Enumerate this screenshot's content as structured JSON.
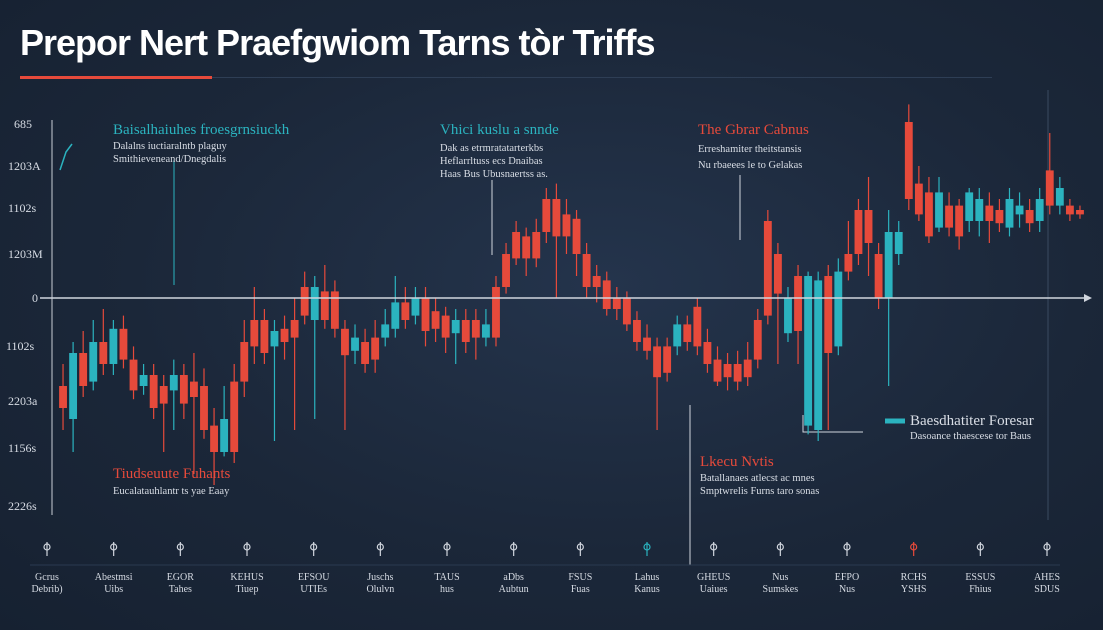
{
  "title": "Prepor Nert Praefgwiom Tarns tòr Triffs",
  "colors": {
    "background": "#1c2a3e",
    "up": "#2bb3bf",
    "down": "#e64a3b",
    "baseline": "#d0d5dd",
    "text": "#ffffff"
  },
  "chart_data": {
    "type": "candlestick",
    "title": "Prepor Nert Praefgwiom Tarns tòr Triffs",
    "y_tick_labels": [
      "685",
      "1203A",
      "1102s",
      "1203M",
      "0",
      "1102s",
      "2203a",
      "1156s",
      "2226s"
    ],
    "baseline_value": 0,
    "ylim": [
      -100,
      95
    ],
    "candles": [
      {
        "o": -40,
        "c": -50,
        "h": -30,
        "l": -60,
        "color": "down"
      },
      {
        "o": -55,
        "c": -25,
        "h": -20,
        "l": -70,
        "color": "up"
      },
      {
        "o": -25,
        "c": -40,
        "h": -15,
        "l": -45,
        "color": "down"
      },
      {
        "o": -38,
        "c": -20,
        "h": -10,
        "l": -42,
        "color": "up"
      },
      {
        "o": -20,
        "c": -30,
        "h": -5,
        "l": -35,
        "color": "down"
      },
      {
        "o": -30,
        "c": -14,
        "h": -10,
        "l": -35,
        "color": "up"
      },
      {
        "o": -14,
        "c": -28,
        "h": -8,
        "l": -32,
        "color": "down"
      },
      {
        "o": -28,
        "c": -42,
        "h": -22,
        "l": -46,
        "color": "down"
      },
      {
        "o": -40,
        "c": -35,
        "h": -30,
        "l": -44,
        "color": "up"
      },
      {
        "o": -35,
        "c": -50,
        "h": -30,
        "l": -55,
        "color": "down"
      },
      {
        "o": -48,
        "c": -40,
        "h": -35,
        "l": -70,
        "color": "down"
      },
      {
        "o": -42,
        "c": -35,
        "h": -28,
        "l": -60,
        "color": "up"
      },
      {
        "o": -35,
        "c": -48,
        "h": -30,
        "l": -55,
        "color": "down"
      },
      {
        "o": -45,
        "c": -38,
        "h": -25,
        "l": -80,
        "color": "down"
      },
      {
        "o": -40,
        "c": -60,
        "h": -32,
        "l": -64,
        "color": "down"
      },
      {
        "o": -58,
        "c": -70,
        "h": -50,
        "l": -85,
        "color": "down"
      },
      {
        "o": -55,
        "c": -70,
        "h": -40,
        "l": -72,
        "color": "up"
      },
      {
        "o": -70,
        "c": -38,
        "h": -30,
        "l": -75,
        "color": "down"
      },
      {
        "o": -38,
        "c": -20,
        "h": -10,
        "l": -45,
        "color": "down"
      },
      {
        "o": -22,
        "c": -10,
        "h": 5,
        "l": -30,
        "color": "down"
      },
      {
        "o": -10,
        "c": -25,
        "h": -5,
        "l": -30,
        "color": "down"
      },
      {
        "o": -22,
        "c": -15,
        "h": -10,
        "l": -65,
        "color": "up"
      },
      {
        "o": -14,
        "c": -20,
        "h": -8,
        "l": -28,
        "color": "down"
      },
      {
        "o": -18,
        "c": -10,
        "h": 0,
        "l": -60,
        "color": "down"
      },
      {
        "o": -8,
        "c": 5,
        "h": 12,
        "l": -12,
        "color": "down"
      },
      {
        "o": 5,
        "c": -10,
        "h": 10,
        "l": -55,
        "color": "up"
      },
      {
        "o": -10,
        "c": 3,
        "h": 15,
        "l": -14,
        "color": "down"
      },
      {
        "o": 3,
        "c": -14,
        "h": 8,
        "l": -18,
        "color": "down"
      },
      {
        "o": -14,
        "c": -26,
        "h": -10,
        "l": -60,
        "color": "down"
      },
      {
        "o": -24,
        "c": -18,
        "h": -12,
        "l": -30,
        "color": "up"
      },
      {
        "o": -20,
        "c": -30,
        "h": -14,
        "l": -34,
        "color": "down"
      },
      {
        "o": -28,
        "c": -18,
        "h": -10,
        "l": -34,
        "color": "down"
      },
      {
        "o": -18,
        "c": -12,
        "h": -5,
        "l": -22,
        "color": "up"
      },
      {
        "o": -14,
        "c": -2,
        "h": 10,
        "l": -18,
        "color": "up"
      },
      {
        "o": -2,
        "c": -10,
        "h": 5,
        "l": -14,
        "color": "down"
      },
      {
        "o": -8,
        "c": 0,
        "h": 5,
        "l": -12,
        "color": "up"
      },
      {
        "o": 0,
        "c": -15,
        "h": 5,
        "l": -22,
        "color": "down"
      },
      {
        "o": -14,
        "c": -6,
        "h": 0,
        "l": -20,
        "color": "down"
      },
      {
        "o": -8,
        "c": -18,
        "h": -4,
        "l": -25,
        "color": "down"
      },
      {
        "o": -16,
        "c": -10,
        "h": -5,
        "l": -30,
        "color": "up"
      },
      {
        "o": -10,
        "c": -20,
        "h": -5,
        "l": -25,
        "color": "down"
      },
      {
        "o": -18,
        "c": -10,
        "h": -5,
        "l": -28,
        "color": "down"
      },
      {
        "o": -12,
        "c": -18,
        "h": -5,
        "l": -22,
        "color": "up"
      },
      {
        "o": -18,
        "c": 5,
        "h": 10,
        "l": -22,
        "color": "down"
      },
      {
        "o": 5,
        "c": 20,
        "h": 25,
        "l": 2,
        "color": "down"
      },
      {
        "o": 18,
        "c": 30,
        "h": 35,
        "l": 15,
        "color": "down"
      },
      {
        "o": 28,
        "c": 18,
        "h": 32,
        "l": 10,
        "color": "down"
      },
      {
        "o": 18,
        "c": 30,
        "h": 36,
        "l": 14,
        "color": "down"
      },
      {
        "o": 30,
        "c": 45,
        "h": 50,
        "l": 25,
        "color": "down"
      },
      {
        "o": 45,
        "c": 28,
        "h": 52,
        "l": 0,
        "color": "down"
      },
      {
        "o": 28,
        "c": 38,
        "h": 45,
        "l": 20,
        "color": "down"
      },
      {
        "o": 36,
        "c": 20,
        "h": 40,
        "l": 10,
        "color": "down"
      },
      {
        "o": 20,
        "c": 5,
        "h": 25,
        "l": 0,
        "color": "down"
      },
      {
        "o": 5,
        "c": 10,
        "h": 15,
        "l": -2,
        "color": "down"
      },
      {
        "o": 8,
        "c": -5,
        "h": 12,
        "l": -8,
        "color": "down"
      },
      {
        "o": -5,
        "c": 0,
        "h": 5,
        "l": -10,
        "color": "down"
      },
      {
        "o": 0,
        "c": -12,
        "h": 3,
        "l": -15,
        "color": "down"
      },
      {
        "o": -10,
        "c": -20,
        "h": -6,
        "l": -24,
        "color": "down"
      },
      {
        "o": -18,
        "c": -24,
        "h": -12,
        "l": -28,
        "color": "down"
      },
      {
        "o": -22,
        "c": -36,
        "h": -18,
        "l": -60,
        "color": "down"
      },
      {
        "o": -34,
        "c": -22,
        "h": -18,
        "l": -38,
        "color": "down"
      },
      {
        "o": -22,
        "c": -12,
        "h": -8,
        "l": -26,
        "color": "up"
      },
      {
        "o": -12,
        "c": -20,
        "h": -8,
        "l": -24,
        "color": "down"
      },
      {
        "o": -4,
        "c": -22,
        "h": 0,
        "l": -26,
        "color": "down"
      },
      {
        "o": -20,
        "c": -30,
        "h": -14,
        "l": -34,
        "color": "down"
      },
      {
        "o": -28,
        "c": -38,
        "h": -22,
        "l": -40,
        "color": "down"
      },
      {
        "o": -36,
        "c": -30,
        "h": -25,
        "l": -42,
        "color": "down"
      },
      {
        "o": -30,
        "c": -38,
        "h": -24,
        "l": -42,
        "color": "down"
      },
      {
        "o": -36,
        "c": -28,
        "h": -20,
        "l": -40,
        "color": "down"
      },
      {
        "o": -28,
        "c": -10,
        "h": -5,
        "l": -32,
        "color": "down"
      },
      {
        "o": -8,
        "c": 35,
        "h": 40,
        "l": -12,
        "color": "down"
      },
      {
        "o": 20,
        "c": 2,
        "h": 25,
        "l": -30,
        "color": "down"
      },
      {
        "o": 0,
        "c": -16,
        "h": 5,
        "l": -20,
        "color": "up"
      },
      {
        "o": -15,
        "c": 10,
        "h": 15,
        "l": -30,
        "color": "down"
      },
      {
        "o": 10,
        "c": -58,
        "h": 12,
        "l": -62,
        "color": "up"
      },
      {
        "o": -60,
        "c": 8,
        "h": 12,
        "l": -65,
        "color": "up"
      },
      {
        "o": 10,
        "c": -25,
        "h": 15,
        "l": -60,
        "color": "down"
      },
      {
        "o": -22,
        "c": 12,
        "h": 18,
        "l": -26,
        "color": "up"
      },
      {
        "o": 12,
        "c": 20,
        "h": 35,
        "l": 8,
        "color": "down"
      },
      {
        "o": 20,
        "c": 40,
        "h": 45,
        "l": 15,
        "color": "down"
      },
      {
        "o": 40,
        "c": 25,
        "h": 55,
        "l": 10,
        "color": "down"
      },
      {
        "o": 20,
        "c": 0,
        "h": 25,
        "l": -5,
        "color": "down"
      },
      {
        "o": 0,
        "c": 30,
        "h": 40,
        "l": -40,
        "color": "up"
      },
      {
        "o": 30,
        "c": 20,
        "h": 35,
        "l": 15,
        "color": "up"
      },
      {
        "o": 45,
        "c": 80,
        "h": 88,
        "l": 40,
        "color": "down"
      },
      {
        "o": 38,
        "c": 52,
        "h": 60,
        "l": 35,
        "color": "down"
      },
      {
        "o": 48,
        "c": 28,
        "h": 55,
        "l": 25,
        "color": "down"
      },
      {
        "o": 48,
        "c": 32,
        "h": 55,
        "l": 30,
        "color": "up"
      },
      {
        "o": 32,
        "c": 42,
        "h": 48,
        "l": 28,
        "color": "down"
      },
      {
        "o": 42,
        "c": 28,
        "h": 45,
        "l": 22,
        "color": "down"
      },
      {
        "o": 35,
        "c": 48,
        "h": 50,
        "l": 30,
        "color": "up"
      },
      {
        "o": 45,
        "c": 35,
        "h": 50,
        "l": 28,
        "color": "up"
      },
      {
        "o": 35,
        "c": 42,
        "h": 48,
        "l": 25,
        "color": "down"
      },
      {
        "o": 40,
        "c": 34,
        "h": 45,
        "l": 30,
        "color": "down"
      },
      {
        "o": 32,
        "c": 45,
        "h": 50,
        "l": 28,
        "color": "up"
      },
      {
        "o": 42,
        "c": 38,
        "h": 48,
        "l": 32,
        "color": "up"
      },
      {
        "o": 40,
        "c": 34,
        "h": 45,
        "l": 30,
        "color": "down"
      },
      {
        "o": 35,
        "c": 45,
        "h": 50,
        "l": 30,
        "color": "up"
      },
      {
        "o": 58,
        "c": 42,
        "h": 75,
        "l": 38,
        "color": "down"
      },
      {
        "o": 42,
        "c": 50,
        "h": 55,
        "l": 38,
        "color": "up"
      },
      {
        "o": 42,
        "c": 38,
        "h": 45,
        "l": 35,
        "color": "down"
      },
      {
        "o": 40,
        "c": 38,
        "h": 42,
        "l": 36,
        "color": "down"
      }
    ],
    "annotations": [
      {
        "title": "Baisalhaiuhes froesgrnsiuckh",
        "title_color": "#2bb3bf",
        "lines": [
          "Dalalns iuctiaralntb plaguy",
          "Smithieveneand/Dnegdalis"
        ]
      },
      {
        "title": "Vhici kuslu a snnde",
        "title_color": "#2bb3bf",
        "lines": [
          "Dak as etrmratatarterkbs",
          "Heflarrltuss ecs Dnaibas",
          "Haas Bus Ubusnaertss as."
        ]
      },
      {
        "title": "The Gbrar Cabnus",
        "title_color": "#e64a3b",
        "lines": [
          "Erreshamiter theitstansis",
          "Nu rbaeees le to Gelakas"
        ]
      },
      {
        "title": "Tiudseuute Fuhants",
        "title_color": "#e64a3b",
        "lines": [
          "Eucalatauhlantr ts yae Eaay"
        ]
      },
      {
        "title": "Lkecu Nvtis",
        "title_color": "#e64a3b",
        "lines": [
          "Batallanaes atlecst ac mnes",
          "Smptwrelis Furns taro sonas"
        ]
      },
      {
        "title": "Baesdhatiter Foresar",
        "title_color": "#2bb3bf",
        "lines": [
          "Dasoance thaescese tor Baus"
        ]
      }
    ],
    "x_labels": [
      [
        "Gcrus",
        "Debrib)"
      ],
      [
        "Abestmsi",
        "Uibs"
      ],
      [
        "EGOR",
        "Tahes"
      ],
      [
        "KEHUS",
        "Tiuep"
      ],
      [
        "EFSOU",
        "UTIEs"
      ],
      [
        "Juschs",
        "Olulvn"
      ],
      [
        "TAUS",
        "hus"
      ],
      [
        "aDbs",
        "Aubtun"
      ],
      [
        "FSUS",
        "Fuas"
      ],
      [
        "Lahus",
        "Kanus"
      ],
      [
        "GHEUS",
        "Uaiues"
      ],
      [
        "Nus",
        "Sumskes"
      ],
      [
        "EFPO",
        "Nus"
      ],
      [
        "RCHS",
        "YSHS"
      ],
      [
        "ESSUS",
        "Fhius"
      ],
      [
        "AHES",
        "SDUS"
      ]
    ]
  }
}
